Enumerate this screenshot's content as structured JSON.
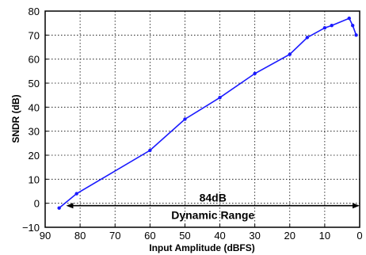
{
  "chart_data": {
    "type": "line",
    "xlabel": "Input Amplitude  (dBFS)",
    "ylabel": "SNDR  (dB)",
    "xlim": [
      90,
      0
    ],
    "ylim": [
      -10,
      80
    ],
    "x_ticks": [
      "90",
      "80",
      "70",
      "60",
      "50",
      "40",
      "30",
      "20",
      "10",
      "0"
    ],
    "y_ticks": [
      "80",
      "70",
      "60",
      "50",
      "40",
      "30",
      "20",
      "10",
      "0",
      "−10"
    ],
    "grid": true,
    "series_color": "#1a1aff",
    "series": [
      {
        "x": [
          86,
          81,
          60,
          50,
          40,
          30,
          20,
          15,
          10,
          8,
          3,
          2,
          1
        ],
        "y": [
          -2,
          4,
          22,
          35,
          44,
          54,
          62,
          69,
          73,
          74,
          77,
          74,
          70
        ]
      }
    ],
    "annotations": {
      "range_value": "84dB",
      "range_label": "Dynamic Range",
      "range_from": 84,
      "range_to": 0,
      "range_at_y": -1
    }
  }
}
